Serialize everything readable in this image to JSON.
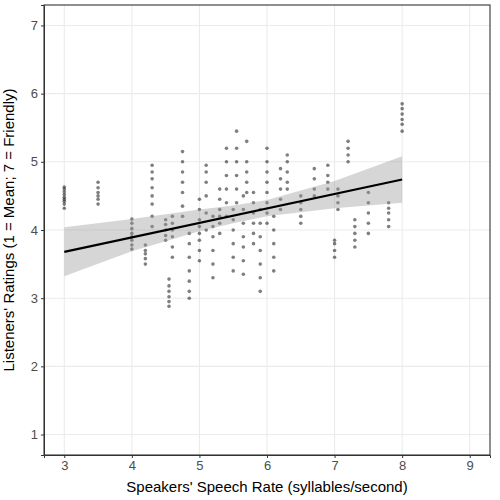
{
  "chart_data": {
    "type": "scatter",
    "xlabel": "Speakers' Speech Rate (syllables/second)",
    "ylabel": "Listeners' Ratings (1 = Mean; 7 = Friendly)",
    "grid": true,
    "color": "#000000",
    "xlim": [
      2.7,
      9.3
    ],
    "ylim": [
      0.7,
      7.3
    ],
    "xticks": [
      3,
      4,
      5,
      6,
      7,
      8,
      9
    ],
    "yticks": [
      1,
      2,
      3,
      4,
      5,
      6,
      7
    ],
    "x": [
      3,
      3,
      3,
      3,
      3,
      3,
      3,
      3,
      3,
      3.5,
      3.5,
      3.5,
      3.5,
      3.5,
      3.5,
      4,
      4,
      4,
      4,
      4,
      4,
      4,
      4,
      4.2,
      4.2,
      4.2,
      4.2,
      4.2,
      4.3,
      4.3,
      4.3,
      4.3,
      4.3,
      4.3,
      4.3,
      4.3,
      4.5,
      4.5,
      4.5,
      4.5,
      4.5,
      4.55,
      4.55,
      4.55,
      4.55,
      4.55,
      4.55,
      4.6,
      4.6,
      4.6,
      4.6,
      4.6,
      4.6,
      4.75,
      4.75,
      4.75,
      4.75,
      4.75,
      4.75,
      4.75,
      4.85,
      4.85,
      4.85,
      4.85,
      4.85,
      4.85,
      4.85,
      5,
      5,
      5,
      5,
      5,
      5,
      5,
      5,
      5.1,
      5.1,
      5.1,
      5.1,
      5.1,
      5.1,
      5.2,
      5.2,
      5.2,
      5.2,
      5.2,
      5.2,
      5.3,
      5.3,
      5.3,
      5.3,
      5.3,
      5.3,
      5.4,
      5.4,
      5.4,
      5.4,
      5.4,
      5.4,
      5.5,
      5.5,
      5.5,
      5.5,
      5.5,
      5.5,
      5.55,
      5.55,
      5.55,
      5.55,
      5.55,
      5.55,
      5.65,
      5.65,
      5.65,
      5.65,
      5.65,
      5.65,
      5.65,
      5.7,
      5.7,
      5.7,
      5.7,
      5.7,
      5.8,
      5.8,
      5.8,
      5.8,
      5.8,
      5.8,
      5.9,
      5.9,
      5.9,
      5.9,
      5.9,
      5.9,
      5.9,
      6,
      6,
      6,
      6,
      6,
      6,
      6,
      6,
      6.1,
      6.1,
      6.1,
      6.1,
      6.1,
      6.2,
      6.2,
      6.2,
      6.2,
      6.2,
      6.3,
      6.3,
      6.3,
      6.3,
      6.3,
      6.5,
      6.5,
      6.5,
      6.5,
      6.5,
      6.7,
      6.7,
      6.7,
      6.7,
      6.9,
      6.9,
      6.9,
      6.9,
      7,
      7,
      7,
      7,
      7.05,
      7.05,
      7.05,
      7.05,
      7.2,
      7.2,
      7.2,
      7.2,
      7.3,
      7.3,
      7.3,
      7.3,
      7.3,
      7.5,
      7.5,
      7.5,
      7.5,
      7.5,
      7.8,
      7.8,
      7.8,
      7.8,
      7.8,
      8,
      8,
      8,
      8,
      8,
      8
    ],
    "values": [
      4.32,
      4.38,
      4.42,
      4.45,
      4.48,
      4.52,
      4.56,
      4.6,
      4.63,
      4.38,
      4.45,
      4.5,
      4.55,
      4.62,
      4.7,
      3.72,
      3.78,
      3.85,
      3.9,
      3.95,
      4.02,
      4.1,
      4.16,
      3.5,
      3.58,
      3.65,
      3.7,
      3.78,
      4.05,
      4.2,
      4.38,
      4.5,
      4.62,
      4.75,
      4.85,
      4.95,
      3.85,
      3.92,
      4.0,
      4.08,
      4.15,
      2.88,
      2.95,
      3.02,
      3.1,
      3.18,
      3.28,
      3.6,
      3.75,
      3.9,
      4.0,
      4.1,
      4.2,
      4.2,
      4.35,
      4.55,
      4.7,
      4.85,
      5.0,
      5.15,
      3.0,
      3.1,
      3.25,
      3.4,
      3.6,
      3.8,
      3.95,
      3.55,
      3.7,
      3.85,
      3.95,
      4.05,
      4.15,
      4.3,
      4.45,
      4.0,
      4.25,
      4.5,
      4.7,
      4.85,
      4.95,
      3.3,
      3.5,
      3.7,
      3.9,
      4.05,
      4.2,
      3.95,
      4.1,
      4.2,
      4.3,
      4.45,
      4.6,
      4.2,
      4.4,
      4.6,
      4.8,
      5.0,
      5.2,
      3.4,
      3.6,
      3.8,
      4.0,
      4.15,
      4.3,
      4.4,
      4.6,
      4.8,
      5.0,
      5.2,
      5.45,
      3.35,
      3.55,
      3.75,
      3.9,
      4.1,
      4.3,
      4.5,
      4.55,
      4.7,
      4.85,
      5.0,
      5.3,
      3.8,
      3.95,
      4.1,
      4.25,
      4.4,
      4.55,
      3.1,
      3.3,
      3.5,
      3.7,
      3.9,
      4.1,
      4.3,
      4.1,
      4.25,
      4.4,
      4.55,
      4.7,
      4.85,
      5.0,
      5.2,
      3.4,
      3.6,
      3.8,
      4.0,
      4.2,
      4.3,
      4.45,
      4.6,
      4.75,
      4.9,
      4.6,
      4.7,
      4.85,
      5.0,
      5.1,
      4.1,
      4.2,
      4.3,
      4.4,
      4.5,
      4.5,
      4.6,
      4.75,
      4.9,
      4.6,
      4.7,
      4.8,
      4.95,
      3.6,
      3.7,
      3.8,
      3.85,
      4.3,
      4.4,
      4.5,
      4.6,
      5.0,
      5.1,
      5.2,
      5.3,
      3.75,
      3.85,
      3.95,
      4.05,
      4.15,
      3.95,
      4.1,
      4.25,
      4.4,
      4.55,
      4.05,
      4.15,
      4.25,
      4.32,
      4.4,
      5.45,
      5.55,
      5.62,
      5.7,
      5.78,
      5.85
    ],
    "fit": {
      "x": [
        3,
        8
      ],
      "values": [
        3.68,
        4.74
      ]
    },
    "band": {
      "x": [
        3,
        4,
        5,
        5.5,
        6,
        7,
        8
      ],
      "lower": [
        3.32,
        3.69,
        3.98,
        4.1,
        4.2,
        4.32,
        4.4
      ],
      "upper": [
        4.04,
        4.16,
        4.3,
        4.36,
        4.44,
        4.72,
        5.08
      ]
    }
  }
}
